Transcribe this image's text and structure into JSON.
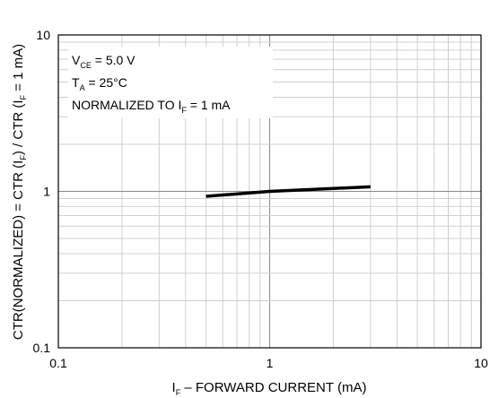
{
  "chart_data": {
    "type": "line",
    "x_scale": "log",
    "y_scale": "log",
    "xlim": [
      0.1,
      10
    ],
    "ylim": [
      0.1,
      10
    ],
    "grid": true,
    "x_ticks": [
      "0.1",
      "1",
      "10"
    ],
    "y_ticks": [
      "0.1",
      "1",
      "10"
    ],
    "xlabel": {
      "pre": "I",
      "sub": "F",
      "post": " – FORWARD CURRENT (mA)"
    },
    "ylabel": {
      "p1": "CTR(NORMALIZED) = CTR (I",
      "s1": "F",
      "p2": ") / CTR (I",
      "s2": "F",
      "p3": " = 1 mA)"
    },
    "annotations": [
      {
        "pre": "V",
        "sub": "CE",
        "post": " = 5.0 V"
      },
      {
        "pre": "T",
        "sub": "A",
        "post": " = 25°C"
      },
      {
        "pre": "NORMALIZED TO I",
        "sub": "F",
        "post": " = 1 mA"
      }
    ],
    "series": [
      {
        "x": [
          0.5,
          1,
          3
        ],
        "y": [
          0.93,
          1.0,
          1.07
        ]
      }
    ]
  }
}
